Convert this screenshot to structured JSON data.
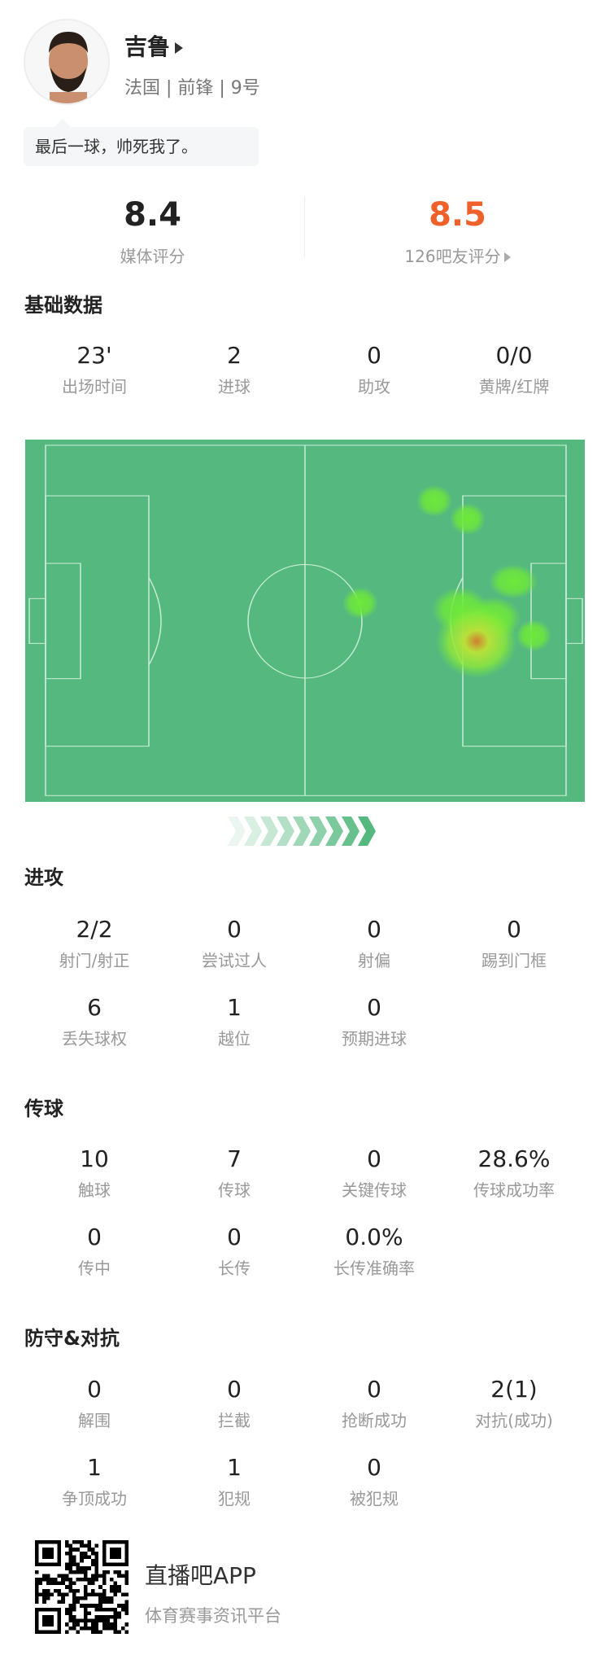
{
  "player": {
    "name": "吉鲁",
    "info": "法国 | 前锋 | 9号",
    "quote": "最后一球，帅死我了。"
  },
  "ratings": {
    "media_value": "8.4",
    "media_label": "媒体评分",
    "fan_value": "8.5",
    "fan_label": "126吧友评分",
    "fan_color": "#f0602a"
  },
  "basic": {
    "title": "基础数据",
    "stats": [
      {
        "v": "23'",
        "l": "出场时间"
      },
      {
        "v": "2",
        "l": "进球"
      },
      {
        "v": "0",
        "l": "助攻"
      },
      {
        "v": "0/0",
        "l": "黄牌/红牌"
      }
    ]
  },
  "heatmap": {
    "pitch_color": "#55b97f",
    "direction": "left-to-right"
  },
  "attack": {
    "title": "进攻",
    "stats": [
      {
        "v": "2/2",
        "l": "射门/射正"
      },
      {
        "v": "0",
        "l": "尝试过人"
      },
      {
        "v": "0",
        "l": "射偏"
      },
      {
        "v": "0",
        "l": "踢到门框"
      },
      {
        "v": "6",
        "l": "丢失球权"
      },
      {
        "v": "1",
        "l": "越位"
      },
      {
        "v": "0",
        "l": "预期进球"
      }
    ]
  },
  "passing": {
    "title": "传球",
    "stats": [
      {
        "v": "10",
        "l": "触球"
      },
      {
        "v": "7",
        "l": "传球"
      },
      {
        "v": "0",
        "l": "关键传球"
      },
      {
        "v": "28.6%",
        "l": "传球成功率"
      },
      {
        "v": "0",
        "l": "传中"
      },
      {
        "v": "0",
        "l": "长传"
      },
      {
        "v": "0.0%",
        "l": "长传准确率"
      }
    ]
  },
  "defense": {
    "title": "防守&对抗",
    "stats": [
      {
        "v": "0",
        "l": "解围"
      },
      {
        "v": "0",
        "l": "拦截"
      },
      {
        "v": "0",
        "l": "抢断成功"
      },
      {
        "v": "2(1)",
        "l": "对抗(成功)"
      },
      {
        "v": "1",
        "l": "争顶成功"
      },
      {
        "v": "1",
        "l": "犯规"
      },
      {
        "v": "0",
        "l": "被犯规"
      }
    ]
  },
  "footer": {
    "app": "直播吧APP",
    "slogan": "体育赛事资讯平台"
  }
}
